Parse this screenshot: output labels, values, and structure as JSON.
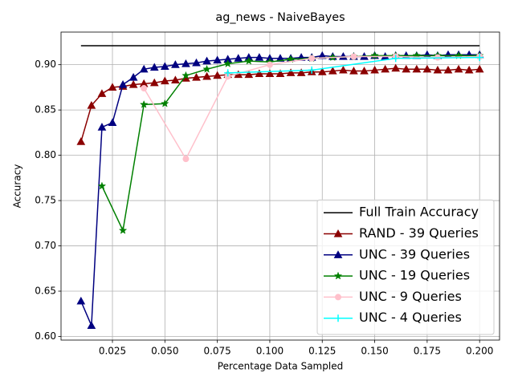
{
  "chart_data": {
    "type": "line",
    "title": "ag_news - NaiveBayes",
    "x_label": "Percentage Data Sampled",
    "y_label": "Accuracy",
    "xlim": [
      0.0005,
      0.2095
    ],
    "ylim": [
      0.596,
      0.936
    ],
    "grid": true,
    "legend": "lower right",
    "xticks": [
      {
        "value": 0.025,
        "label": "0.025"
      },
      {
        "value": 0.05,
        "label": "0.050"
      },
      {
        "value": 0.075,
        "label": "0.075"
      },
      {
        "value": 0.1,
        "label": "0.100"
      },
      {
        "value": 0.125,
        "label": "0.125"
      },
      {
        "value": 0.15,
        "label": "0.150"
      },
      {
        "value": 0.175,
        "label": "0.175"
      },
      {
        "value": 0.2,
        "label": "0.200"
      }
    ],
    "yticks": [
      {
        "value": 0.6,
        "label": "0.60"
      },
      {
        "value": 0.65,
        "label": "0.65"
      },
      {
        "value": 0.7,
        "label": "0.70"
      },
      {
        "value": 0.75,
        "label": "0.75"
      },
      {
        "value": 0.8,
        "label": "0.80"
      },
      {
        "value": 0.85,
        "label": "0.85"
      },
      {
        "value": 0.9,
        "label": "0.90"
      }
    ],
    "series": [
      {
        "name": "Full Train Accuracy",
        "color": "#000000",
        "marker": "none",
        "x": [
          0.01,
          0.2
        ],
        "values": [
          0.921,
          0.921
        ]
      },
      {
        "name": "RAND - 39 Queries",
        "color": "#8b0000",
        "marker": "triangle",
        "x": [
          0.01,
          0.015,
          0.02,
          0.025,
          0.03,
          0.035,
          0.04,
          0.045,
          0.05,
          0.055,
          0.06,
          0.065,
          0.07,
          0.075,
          0.08,
          0.085,
          0.09,
          0.095,
          0.1,
          0.105,
          0.11,
          0.115,
          0.12,
          0.125,
          0.13,
          0.135,
          0.14,
          0.145,
          0.15,
          0.155,
          0.16,
          0.165,
          0.17,
          0.175,
          0.18,
          0.185,
          0.19,
          0.195,
          0.2
        ],
        "values": [
          0.815,
          0.855,
          0.868,
          0.875,
          0.876,
          0.878,
          0.879,
          0.88,
          0.882,
          0.883,
          0.885,
          0.886,
          0.887,
          0.888,
          0.889,
          0.889,
          0.889,
          0.89,
          0.89,
          0.89,
          0.891,
          0.891,
          0.892,
          0.892,
          0.893,
          0.894,
          0.893,
          0.893,
          0.894,
          0.895,
          0.896,
          0.895,
          0.895,
          0.895,
          0.894,
          0.894,
          0.895,
          0.894,
          0.895
        ]
      },
      {
        "name": "UNC - 39 Queries",
        "color": "#000080",
        "marker": "triangle",
        "x": [
          0.01,
          0.015,
          0.02,
          0.025,
          0.03,
          0.035,
          0.04,
          0.045,
          0.05,
          0.055,
          0.06,
          0.065,
          0.07,
          0.075,
          0.08,
          0.085,
          0.09,
          0.095,
          0.1,
          0.105,
          0.11,
          0.115,
          0.12,
          0.125,
          0.13,
          0.135,
          0.14,
          0.145,
          0.15,
          0.155,
          0.16,
          0.165,
          0.17,
          0.175,
          0.18,
          0.185,
          0.19,
          0.195,
          0.2
        ],
        "values": [
          0.639,
          0.612,
          0.831,
          0.836,
          0.878,
          0.886,
          0.895,
          0.897,
          0.898,
          0.9,
          0.901,
          0.902,
          0.904,
          0.905,
          0.906,
          0.907,
          0.908,
          0.908,
          0.907,
          0.907,
          0.907,
          0.908,
          0.908,
          0.91,
          0.909,
          0.909,
          0.909,
          0.909,
          0.91,
          0.909,
          0.91,
          0.91,
          0.91,
          0.911,
          0.91,
          0.911,
          0.911,
          0.911,
          0.911
        ]
      },
      {
        "name": "UNC - 19 Queries",
        "color": "#008000",
        "marker": "star",
        "x": [
          0.02,
          0.03,
          0.04,
          0.05,
          0.06,
          0.07,
          0.08,
          0.09,
          0.1,
          0.11,
          0.12,
          0.13,
          0.14,
          0.15,
          0.16,
          0.17,
          0.18,
          0.19,
          0.2
        ],
        "values": [
          0.766,
          0.717,
          0.856,
          0.857,
          0.888,
          0.895,
          0.901,
          0.904,
          0.903,
          0.906,
          0.907,
          0.908,
          0.909,
          0.91,
          0.91,
          0.91,
          0.91,
          0.91,
          0.91
        ]
      },
      {
        "name": "UNC - 9 Queries",
        "color": "#ffc0cb",
        "marker": "circle",
        "x": [
          0.04,
          0.06,
          0.08,
          0.1,
          0.12,
          0.14,
          0.16,
          0.18,
          0.2
        ],
        "values": [
          0.874,
          0.796,
          0.887,
          0.9,
          0.907,
          0.909,
          0.909,
          0.908,
          0.909
        ]
      },
      {
        "name": "UNC - 4 Queries",
        "color": "#00ffff",
        "marker": "plus",
        "x": [
          0.08,
          0.12,
          0.16,
          0.2
        ],
        "values": [
          0.891,
          0.894,
          0.907,
          0.908
        ]
      }
    ]
  }
}
